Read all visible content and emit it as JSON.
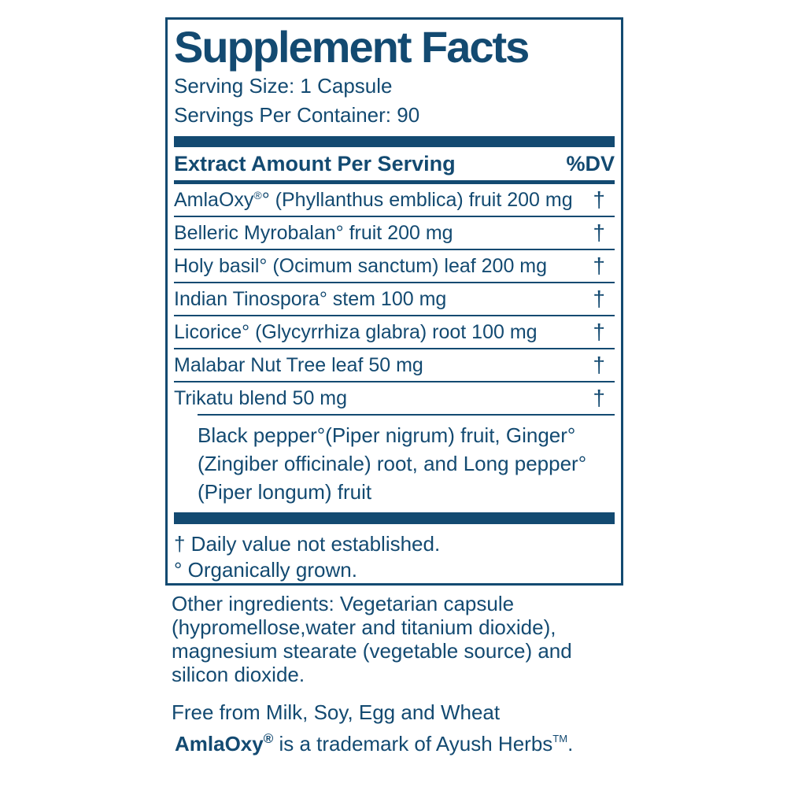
{
  "label": {
    "title": "Supplement Facts",
    "serving_size": "Serving Size: 1 Capsule",
    "servings_per_container": "Servings Per Container: 90",
    "table": {
      "header": {
        "name": "Extract Amount Per Serving",
        "dv": "%DV"
      },
      "rows": [
        {
          "name": "AmlaOxy",
          "sup": "®",
          "rest": "° (Phyllanthus emblica) fruit 200 mg",
          "dv": "†"
        },
        {
          "name": "Belleric Myrobalan° fruit 200 mg",
          "sup": "",
          "rest": "",
          "dv": "†"
        },
        {
          "name": "Holy basil° (Ocimum sanctum) leaf 200 mg",
          "sup": "",
          "rest": "",
          "dv": "†"
        },
        {
          "name": "Indian Tinospora° stem 100 mg",
          "sup": "",
          "rest": "",
          "dv": "†"
        },
        {
          "name": "Licorice° (Glycyrrhiza glabra) root 100 mg",
          "sup": "",
          "rest": "",
          "dv": "†"
        },
        {
          "name": "Malabar Nut Tree leaf 50 mg",
          "sup": "",
          "rest": "",
          "dv": "†"
        },
        {
          "name": "Trikatu blend 50 mg",
          "sup": "",
          "rest": "",
          "dv": "†"
        }
      ],
      "sub_ingredients": {
        "lines": [
          "Black pepper°(Piper nigrum) fruit, Ginger°",
          "(Zingiber officinale) root, and Long pepper°",
          "(Piper longum) fruit"
        ]
      }
    },
    "footnotes": {
      "daily_value": "† Daily value not established.",
      "organic": "° Organically grown."
    }
  },
  "below": {
    "other_ingredients": {
      "lines": [
        "Other ingredients: Vegetarian capsule",
        "(hypromellose,water and titanium dioxide),",
        "magnesium stearate (vegetable source) and",
        "silicon dioxide."
      ]
    },
    "free_from": "Free from Milk, Soy, Egg and Wheat",
    "trademark": {
      "brand": "AmlaOxy",
      "brand_sup": "®",
      "text": " is a trademark of Ayush Herbs",
      "tm_sup": "TM",
      "period": "."
    }
  },
  "colors": {
    "navy": "#134a71"
  }
}
